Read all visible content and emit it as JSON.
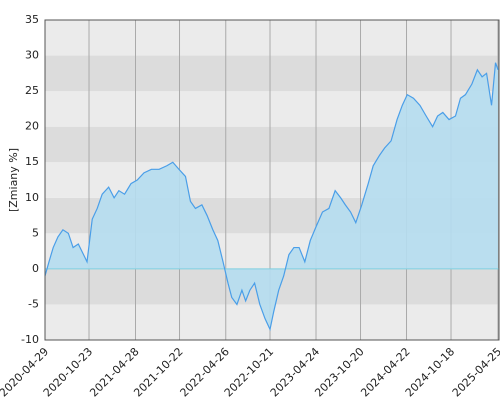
{
  "chart_data": {
    "type": "area",
    "ylabel": "[Zmiany %]",
    "x": [
      "2020-04-29",
      "2020-05-15",
      "2020-06-01",
      "2020-06-20",
      "2020-07-10",
      "2020-08-01",
      "2020-08-20",
      "2020-09-10",
      "2020-10-01",
      "2020-10-15",
      "2020-11-05",
      "2020-11-25",
      "2020-12-15",
      "2021-01-10",
      "2021-02-01",
      "2021-02-20",
      "2021-03-15",
      "2021-04-10",
      "2021-05-05",
      "2021-06-01",
      "2021-07-01",
      "2021-08-01",
      "2021-09-01",
      "2021-09-25",
      "2021-10-20",
      "2021-11-15",
      "2021-12-05",
      "2021-12-25",
      "2022-01-20",
      "2022-02-10",
      "2022-03-05",
      "2022-03-25",
      "2022-04-15",
      "2022-05-05",
      "2022-05-20",
      "2022-06-10",
      "2022-06-30",
      "2022-07-15",
      "2022-08-01",
      "2022-08-20",
      "2022-09-10",
      "2022-10-01",
      "2022-10-21",
      "2022-11-05",
      "2022-11-25",
      "2022-12-15",
      "2023-01-05",
      "2023-01-25",
      "2023-02-15",
      "2023-03-10",
      "2023-04-01",
      "2023-04-25",
      "2023-05-20",
      "2023-06-15",
      "2023-07-10",
      "2023-08-01",
      "2023-08-20",
      "2023-09-10",
      "2023-10-01",
      "2023-10-25",
      "2023-11-20",
      "2023-12-10",
      "2024-01-05",
      "2024-01-25",
      "2024-02-20",
      "2024-03-15",
      "2024-04-05",
      "2024-04-25",
      "2024-05-20",
      "2024-06-15",
      "2024-07-10",
      "2024-08-05",
      "2024-08-25",
      "2024-09-15",
      "2024-10-10",
      "2024-11-05",
      "2024-11-25",
      "2024-12-15",
      "2025-01-10",
      "2025-02-01",
      "2025-02-20",
      "2025-03-10",
      "2025-03-30",
      "2025-04-15",
      "2025-04-25"
    ],
    "values": [
      -1,
      1,
      3,
      4.5,
      5.5,
      5,
      3,
      3.5,
      2,
      1,
      7,
      8.5,
      10.5,
      11.5,
      10,
      11,
      10.5,
      12,
      12.5,
      13.5,
      14,
      14,
      14.5,
      15,
      14,
      13,
      9.5,
      8.5,
      9,
      7.5,
      5.5,
      4,
      1,
      -2,
      -4,
      -5,
      -3,
      -4.5,
      -3,
      -2,
      -5,
      -7,
      -8.5,
      -6,
      -3,
      -1,
      2,
      3,
      3,
      1,
      4,
      6,
      8,
      8.5,
      11,
      10,
      9,
      8,
      6.5,
      9,
      12,
      14.5,
      16,
      17,
      18,
      21,
      23,
      24.5,
      24,
      23,
      21.5,
      20,
      21.5,
      22,
      21,
      21.5,
      24,
      24.5,
      26,
      28,
      27,
      27.5,
      23,
      29,
      28
    ],
    "color": "#4a9ee8",
    "fill": "#b5ddef",
    "xlim": [
      "2020-04-29",
      "2025-04-29"
    ],
    "xticks": [
      "2020-04-29",
      "2020-10-23",
      "2021-04-28",
      "2021-10-22",
      "2022-04-26",
      "2022-10-21",
      "2023-04-24",
      "2023-10-20",
      "2024-04-22",
      "2024-10-18",
      "2025-04-25"
    ],
    "ylim": [
      -10,
      35
    ],
    "yticks": [
      -10,
      -5,
      0,
      5,
      10,
      15,
      20,
      25,
      30,
      35
    ],
    "grid": true
  }
}
